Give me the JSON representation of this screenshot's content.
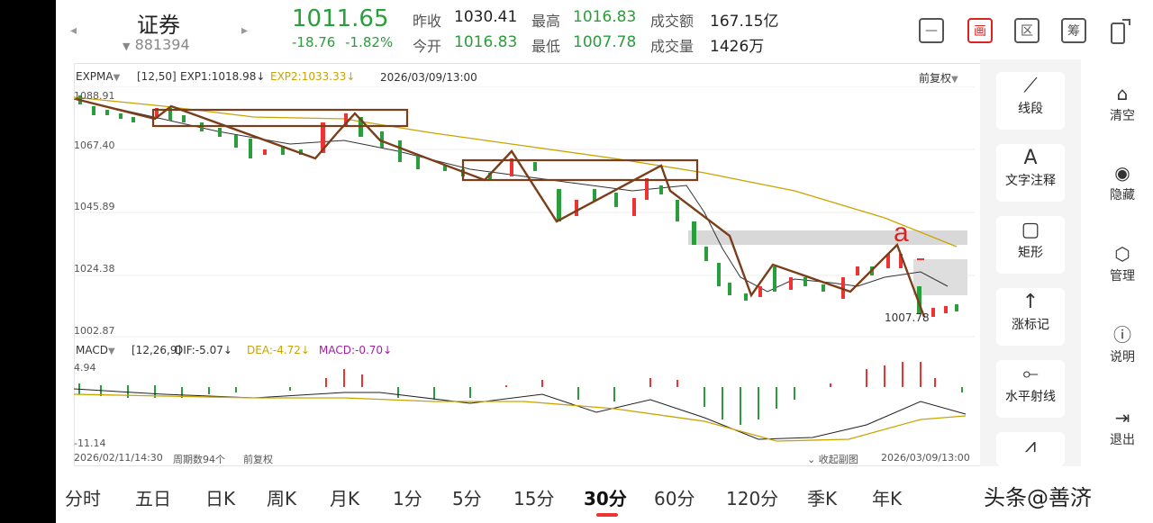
{
  "header": {
    "name": "证券",
    "code": "881394",
    "price": "1011.65",
    "change": "-18.76",
    "change_pct": "-1.82%",
    "stats": [
      {
        "label": "昨收",
        "value": "1030.41"
      },
      {
        "label": "今开",
        "value": "1016.83"
      },
      {
        "label": "最高",
        "value": "1016.83"
      },
      {
        "label": "最低",
        "value": "1007.78"
      },
      {
        "label": "成交额",
        "value": "167.15亿"
      },
      {
        "label": "成交量",
        "value": "1426万"
      }
    ],
    "icons": [
      "画",
      "区",
      "筹"
    ]
  },
  "main_chart": {
    "indicator": "EXPMA",
    "params": "[12,50]",
    "exp1": "EXP1:1018.98↓",
    "exp2": "EXP2:1033.33↓",
    "time": "2026/03/09/13:00",
    "adjust": "前复权",
    "y_labels": [
      "1088.91",
      "1067.40",
      "1045.89",
      "1024.38",
      "1002.87"
    ],
    "low_marker": "1007.78",
    "annotation": "a"
  },
  "macd": {
    "indicator": "MACD",
    "params": "[12,26,9]",
    "dif": "DIF:-5.07↓",
    "dea": "DEA:-4.72↓",
    "macd": "MACD:-0.70↓",
    "y_labels": [
      "4.94",
      "-11.14"
    ]
  },
  "footer": {
    "start": "2026/02/11/14:30",
    "period_count": "周期数94个",
    "adjust": "前复权",
    "collapse": "收起副图",
    "end": "2026/03/09/13:00"
  },
  "tools": [
    "线段",
    "文字注释",
    "矩形",
    "涨标记",
    "水平射线"
  ],
  "actions": [
    "清空",
    "隐藏",
    "管理",
    "说明",
    "退出"
  ],
  "tabs": [
    "分时",
    "五日",
    "日K",
    "周K",
    "月K",
    "1分",
    "5分",
    "15分",
    "30分",
    "60分",
    "120分",
    "季K",
    "年K"
  ],
  "watermark": "头条@善济"
}
